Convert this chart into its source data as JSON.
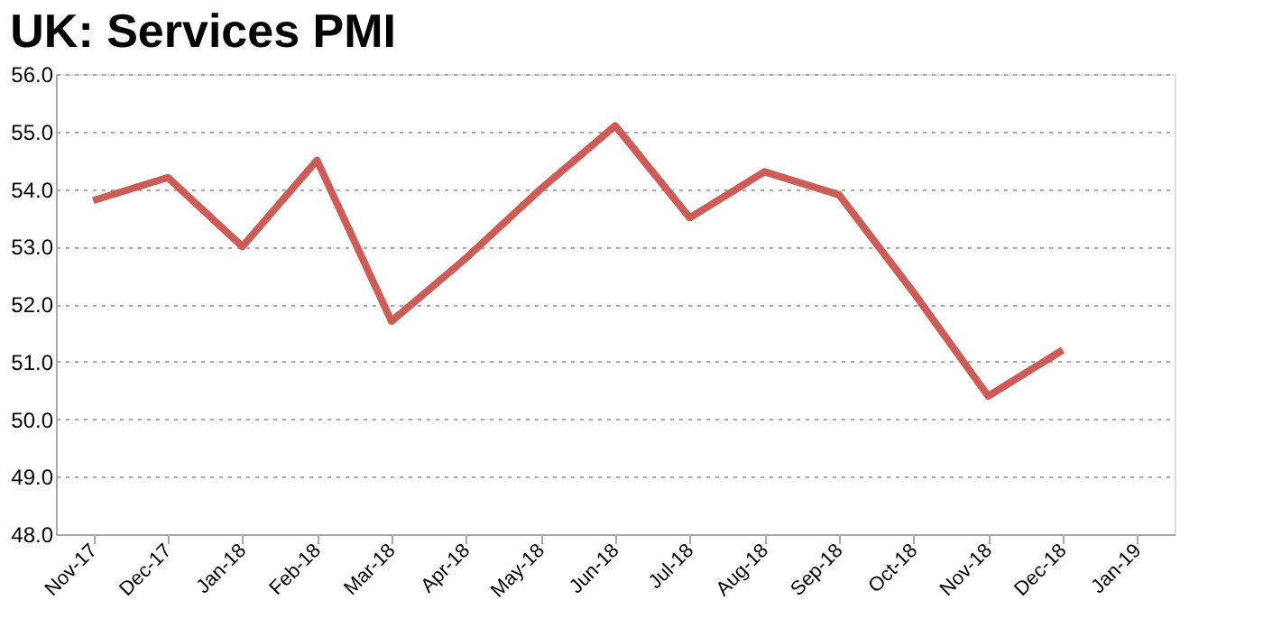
{
  "chart_data": {
    "type": "line",
    "title": "UK: Services PMI",
    "categories": [
      "Nov-17",
      "Dec-17",
      "Jan-18",
      "Feb-18",
      "Mar-18",
      "Apr-18",
      "May-18",
      "Jun-18",
      "Jul-18",
      "Aug-18",
      "Sep-18",
      "Oct-18",
      "Nov-18",
      "Dec-18",
      "Jan-19"
    ],
    "series": [
      {
        "color": "#cd5c57",
        "values": [
          53.8,
          54.2,
          53.0,
          54.5,
          51.7,
          52.8,
          54.0,
          55.1,
          53.5,
          54.3,
          53.9,
          52.2,
          50.4,
          51.2,
          null
        ]
      }
    ],
    "ylim": [
      48,
      56
    ],
    "yticks": [
      {
        "value": 48,
        "label": "48.0"
      },
      {
        "value": 49,
        "label": "49.0"
      },
      {
        "value": 50,
        "label": "50.0"
      },
      {
        "value": 51,
        "label": "51.0"
      },
      {
        "value": 52,
        "label": "52.0"
      },
      {
        "value": 53,
        "label": "53.0"
      },
      {
        "value": 54,
        "label": "54.0"
      },
      {
        "value": 55,
        "label": "55.0"
      },
      {
        "value": 56,
        "label": "56.0"
      }
    ],
    "grid": "y",
    "marker": "none",
    "line_style": "solid"
  }
}
